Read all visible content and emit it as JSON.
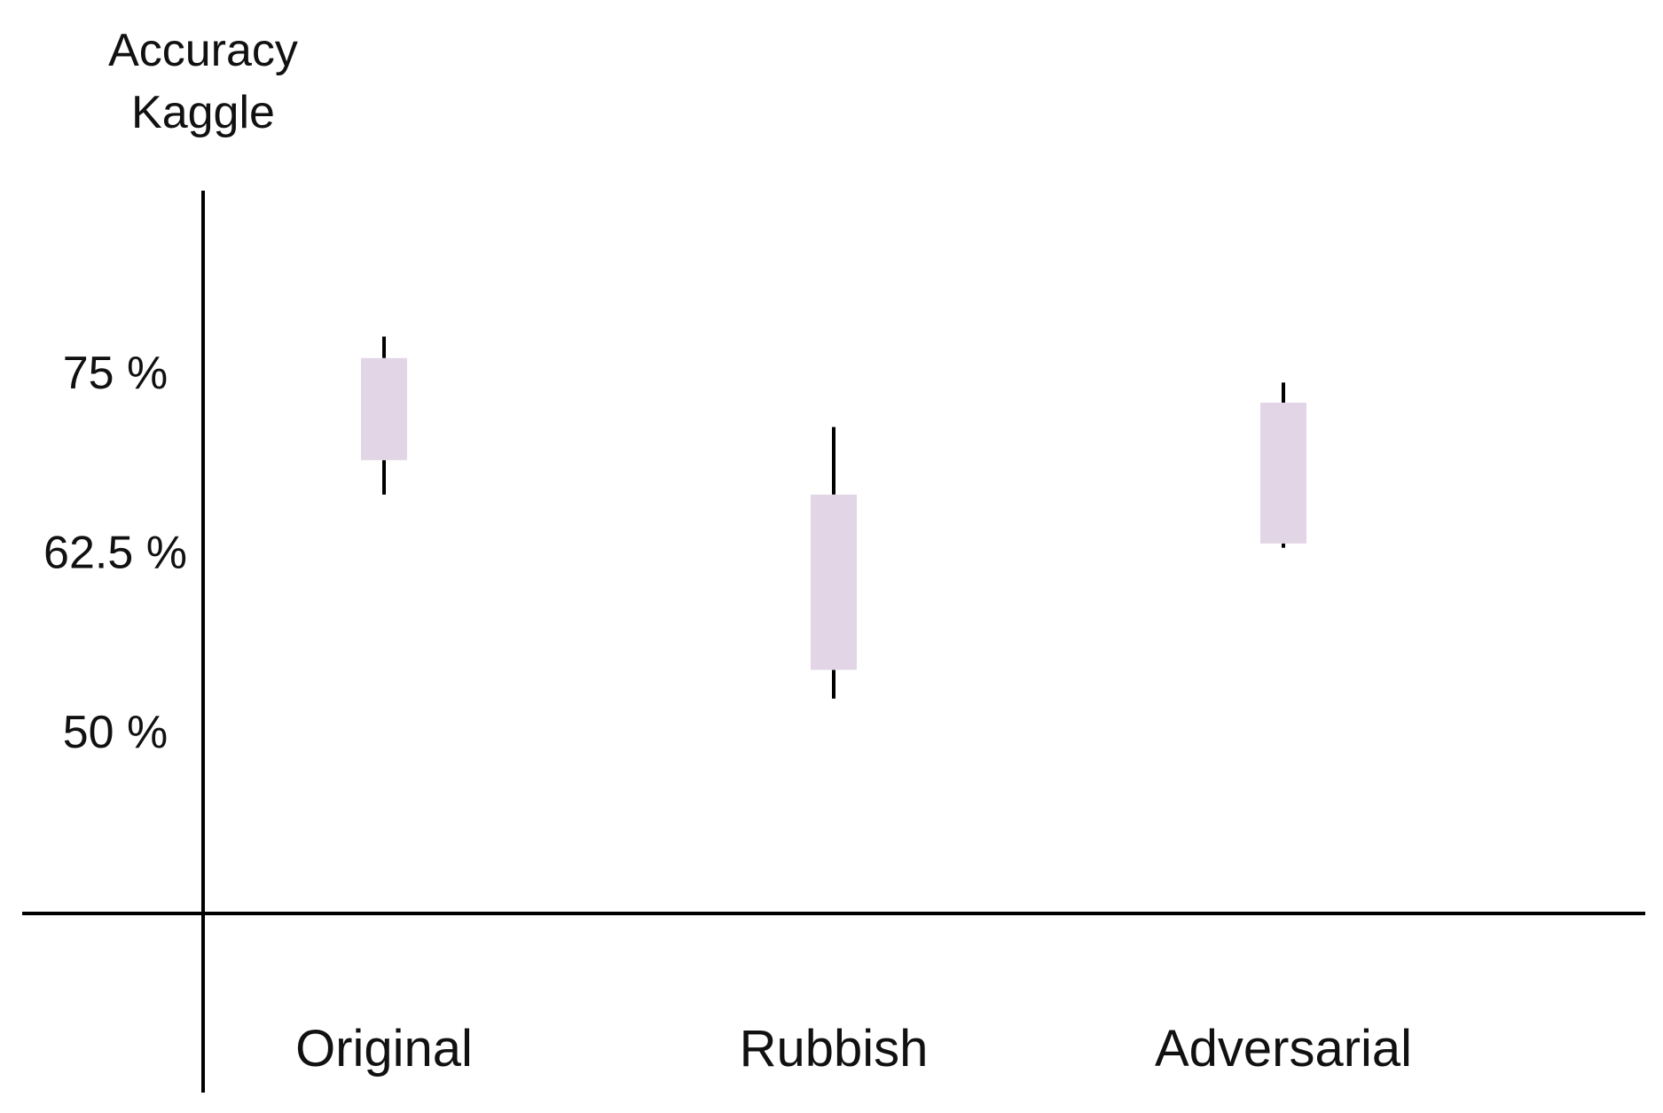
{
  "chart_data": {
    "type": "box",
    "ylabel_lines": [
      "Accuracy",
      "Kaggle"
    ],
    "y_ticks": [
      {
        "value": 75,
        "label": "75 %"
      },
      {
        "value": 62.5,
        "label": "62.5 %"
      },
      {
        "value": 50,
        "label": "50 %"
      }
    ],
    "categories": [
      "Original",
      "Rubbish",
      "Adversarial"
    ],
    "boxes": [
      {
        "category": "Original",
        "whisker_low": 66.5,
        "q1": 68.9,
        "q3": 76,
        "whisker_high": 77.5
      },
      {
        "category": "Rubbish",
        "whisker_low": 52.3,
        "q1": 54.3,
        "q3": 66.5,
        "whisker_high": 71.2
      },
      {
        "category": "Adversarial",
        "whisker_low": 62.8,
        "q1": 63.1,
        "q3": 72.9,
        "whisker_high": 74.3
      }
    ],
    "box_color": "#e2d5e6",
    "whisker_color": "#000000",
    "grid": false
  }
}
